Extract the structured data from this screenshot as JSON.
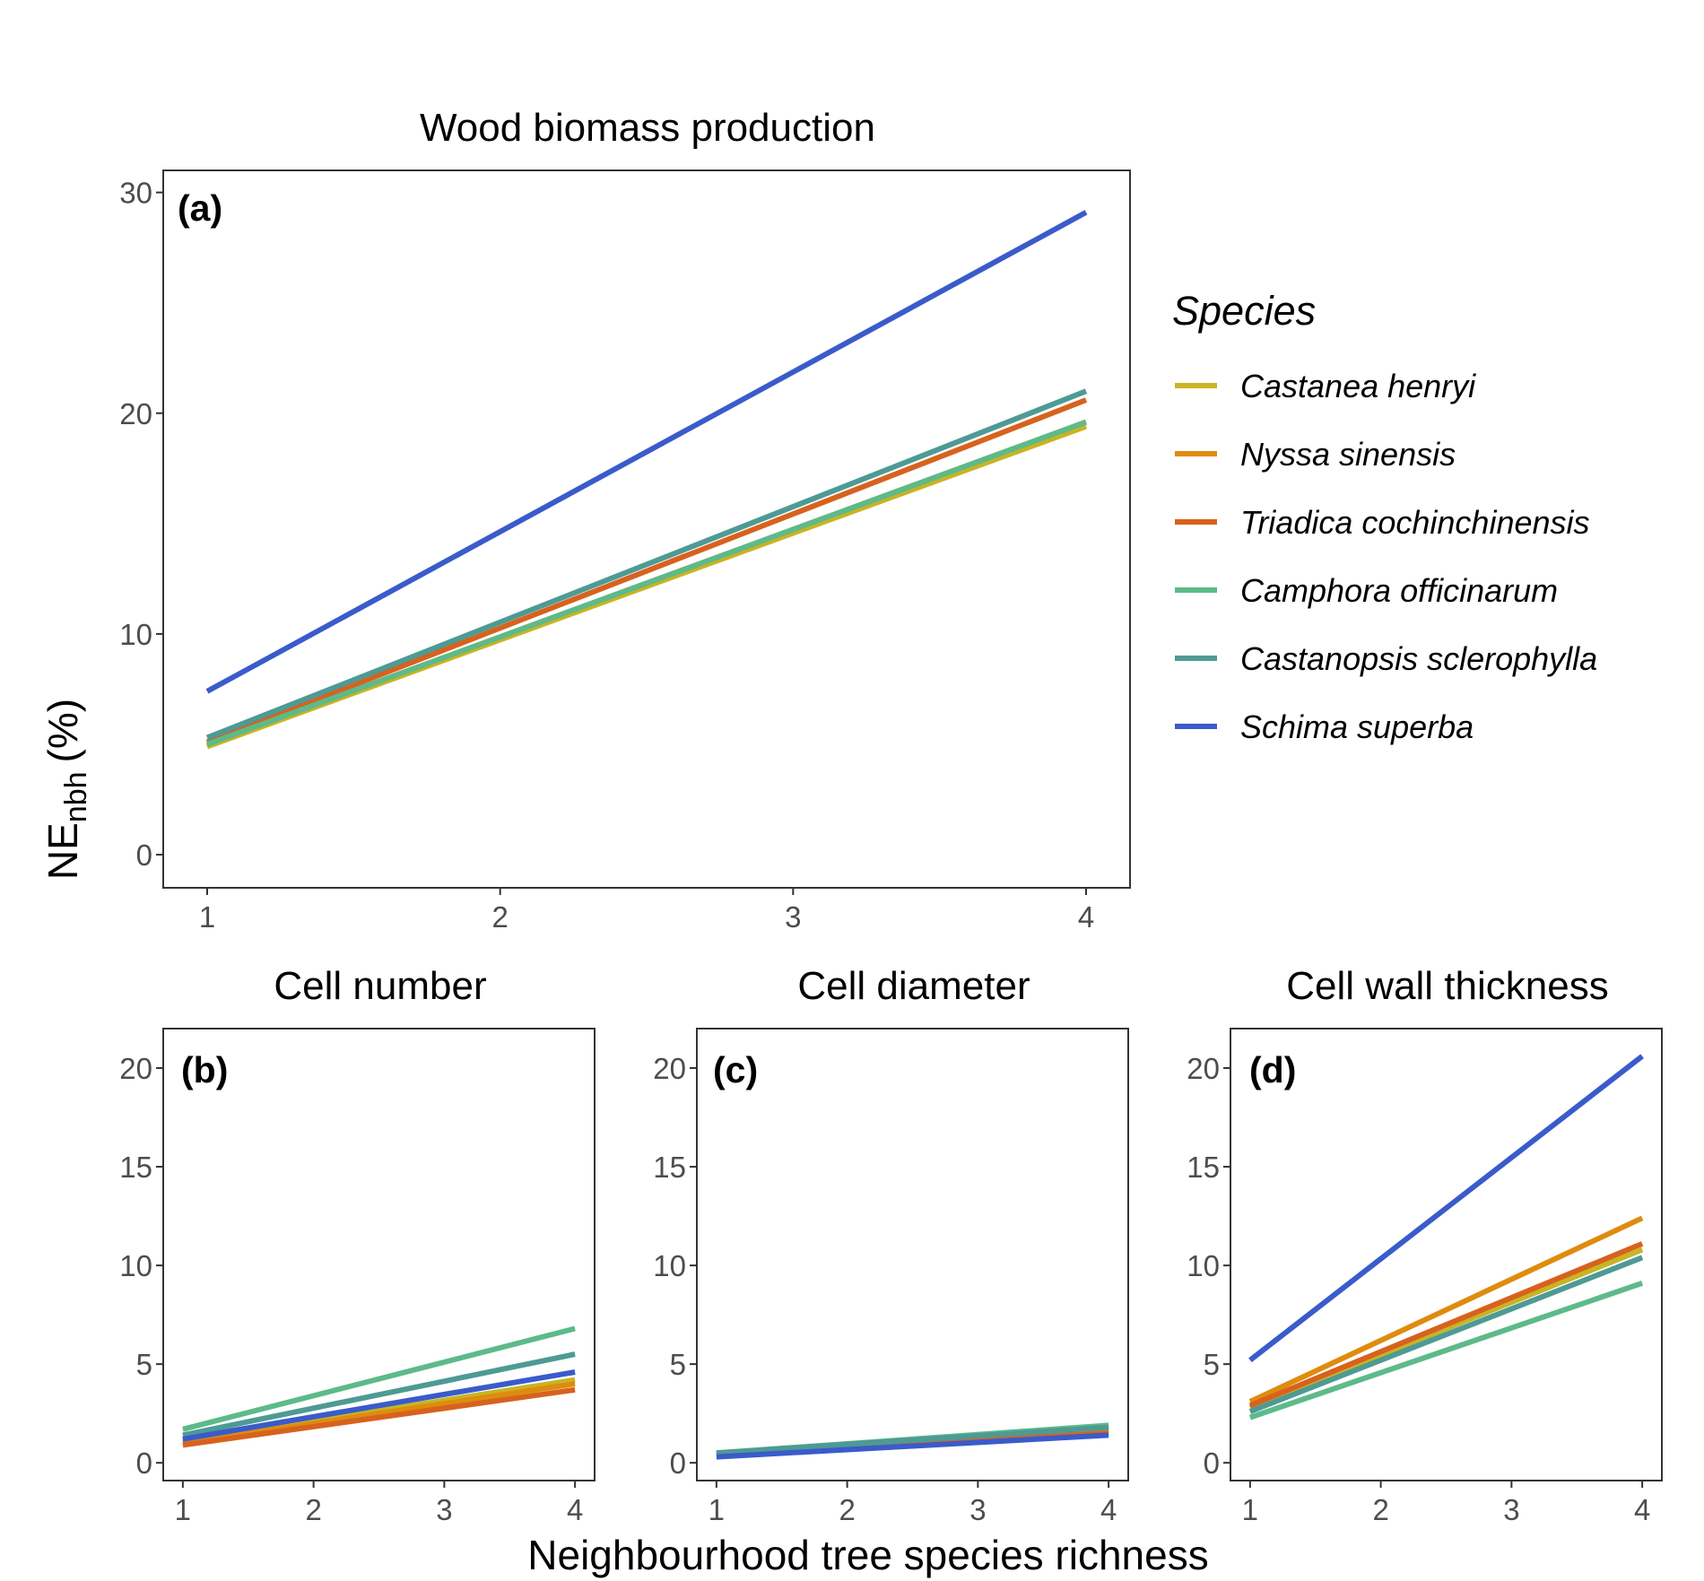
{
  "chart_data": [
    {
      "panel": "(a)",
      "type": "line",
      "title": "Wood biomass production",
      "x": [
        1,
        4
      ],
      "xlim": [
        0.85,
        4.15
      ],
      "ylim": [
        -1.5,
        31
      ],
      "xticks": [
        1,
        2,
        3,
        4
      ],
      "yticks": [
        0,
        10,
        20,
        30
      ],
      "series": [
        {
          "name": "Castanea henryi",
          "values": [
            4.9,
            19.4
          ]
        },
        {
          "name": "Nyssa sinensis",
          "values": [
            5.0,
            19.6
          ]
        },
        {
          "name": "Triadica cochinchinensis",
          "values": [
            5.1,
            20.6
          ]
        },
        {
          "name": "Camphora officinarum",
          "values": [
            5.0,
            19.6
          ]
        },
        {
          "name": "Castanopsis sclerophylla",
          "values": [
            5.3,
            21.0
          ]
        },
        {
          "name": "Schima superba",
          "values": [
            7.4,
            29.1
          ]
        }
      ]
    },
    {
      "panel": "(b)",
      "type": "line",
      "title": "Cell number",
      "x": [
        1,
        4
      ],
      "xlim": [
        0.85,
        4.15
      ],
      "ylim": [
        -0.9,
        22
      ],
      "xticks": [
        1,
        2,
        3,
        4
      ],
      "yticks": [
        0,
        5,
        10,
        15,
        20
      ],
      "series": [
        {
          "name": "Castanea henryi",
          "values": [
            1.1,
            4.2
          ]
        },
        {
          "name": "Nyssa sinensis",
          "values": [
            1.0,
            4.0
          ]
        },
        {
          "name": "Triadica cochinchinensis",
          "values": [
            0.9,
            3.7
          ]
        },
        {
          "name": "Camphora officinarum",
          "values": [
            1.7,
            6.8
          ]
        },
        {
          "name": "Castanopsis sclerophylla",
          "values": [
            1.4,
            5.5
          ]
        },
        {
          "name": "Schima superba",
          "values": [
            1.2,
            4.6
          ]
        }
      ]
    },
    {
      "panel": "(c)",
      "type": "line",
      "title": "Cell diameter",
      "x": [
        1,
        4
      ],
      "xlim": [
        0.85,
        4.15
      ],
      "ylim": [
        -0.9,
        22
      ],
      "xticks": [
        1,
        2,
        3,
        4
      ],
      "yticks": [
        0,
        5,
        10,
        15,
        20
      ],
      "series": [
        {
          "name": "Castanea henryi",
          "values": [
            0.4,
            1.7
          ]
        },
        {
          "name": "Nyssa sinensis",
          "values": [
            0.4,
            1.6
          ]
        },
        {
          "name": "Triadica cochinchinensis",
          "values": [
            0.4,
            1.5
          ]
        },
        {
          "name": "Camphora officinarum",
          "values": [
            0.5,
            1.9
          ]
        },
        {
          "name": "Castanopsis sclerophylla",
          "values": [
            0.5,
            1.8
          ]
        },
        {
          "name": "Schima superba",
          "values": [
            0.3,
            1.4
          ]
        }
      ]
    },
    {
      "panel": "(d)",
      "type": "line",
      "title": "Cell wall thickness",
      "x": [
        1,
        4
      ],
      "xlim": [
        0.85,
        4.15
      ],
      "ylim": [
        -0.9,
        22
      ],
      "xticks": [
        1,
        2,
        3,
        4
      ],
      "yticks": [
        0,
        5,
        10,
        15,
        20
      ],
      "series": [
        {
          "name": "Castanea henryi",
          "values": [
            2.8,
            10.8
          ]
        },
        {
          "name": "Nyssa sinensis",
          "values": [
            3.1,
            12.4
          ]
        },
        {
          "name": "Triadica cochinchinensis",
          "values": [
            2.9,
            11.1
          ]
        },
        {
          "name": "Camphora officinarum",
          "values": [
            2.3,
            9.1
          ]
        },
        {
          "name": "Castanopsis sclerophylla",
          "values": [
            2.6,
            10.4
          ]
        },
        {
          "name": "Schima superba",
          "values": [
            5.2,
            20.6
          ]
        }
      ]
    }
  ],
  "ylabel_main": "NE",
  "ylabel_sub": "nbh",
  "ylabel_unit": "(%)",
  "xlabel": "Neighbourhood tree species richness",
  "legend": {
    "title": "Species",
    "items": [
      {
        "name": "Castanea henryi",
        "color": "#c8b424"
      },
      {
        "name": "Nyssa sinensis",
        "color": "#de8c0e"
      },
      {
        "name": "Triadica cochinchinensis",
        "color": "#d7621e"
      },
      {
        "name": "Camphora officinarum",
        "color": "#5dba8a"
      },
      {
        "name": "Castanopsis sclerophylla",
        "color": "#4e9a94"
      },
      {
        "name": "Schima superba",
        "color": "#3a5bcb"
      }
    ]
  }
}
